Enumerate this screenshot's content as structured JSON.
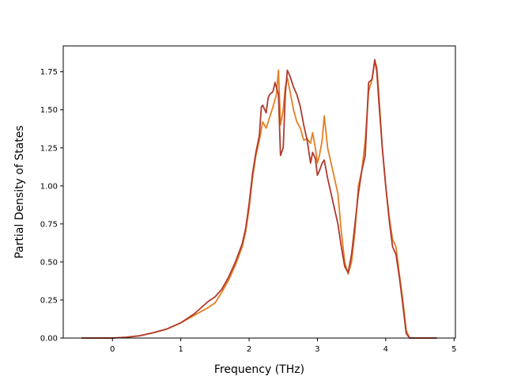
{
  "chart_data": {
    "type": "line",
    "title": "",
    "xlabel": "Frequency (THz)",
    "ylabel": "Partial Density of States",
    "xlim": [
      -0.72,
      5.02
    ],
    "ylim": [
      0.0,
      1.92
    ],
    "xticks": [
      0,
      1,
      2,
      3,
      4,
      5
    ],
    "xtick_labels": [
      "0",
      "1",
      "2",
      "3",
      "4",
      "5"
    ],
    "yticks": [
      0.0,
      0.25,
      0.5,
      0.75,
      1.0,
      1.25,
      1.5,
      1.75
    ],
    "ytick_labels": [
      "0.00",
      "0.25",
      "0.50",
      "0.75",
      "1.00",
      "1.25",
      "1.50",
      "1.75"
    ],
    "grid": false,
    "legend": "none",
    "series": [
      {
        "color": "#e67e22",
        "x": [
          -0.45,
          0.0,
          0.2,
          0.4,
          0.6,
          0.8,
          1.0,
          1.2,
          1.4,
          1.5,
          1.6,
          1.7,
          1.8,
          1.9,
          1.95,
          2.0,
          2.05,
          2.1,
          2.15,
          2.2,
          2.25,
          2.28,
          2.3,
          2.35,
          2.4,
          2.43,
          2.46,
          2.5,
          2.53,
          2.56,
          2.6,
          2.65,
          2.7,
          2.75,
          2.8,
          2.85,
          2.9,
          2.93,
          2.97,
          3.0,
          3.03,
          3.07,
          3.1,
          3.15,
          3.2,
          3.25,
          3.3,
          3.35,
          3.4,
          3.45,
          3.5,
          3.55,
          3.6,
          3.65,
          3.7,
          3.75,
          3.8,
          3.84,
          3.87,
          3.9,
          3.95,
          4.0,
          4.05,
          4.1,
          4.15,
          4.2,
          4.25,
          4.3,
          4.35,
          4.5,
          4.75
        ],
        "y": [
          0.0,
          0.0,
          0.005,
          0.015,
          0.035,
          0.06,
          0.1,
          0.15,
          0.2,
          0.23,
          0.3,
          0.38,
          0.48,
          0.6,
          0.7,
          0.85,
          1.05,
          1.2,
          1.3,
          1.42,
          1.38,
          1.42,
          1.45,
          1.52,
          1.6,
          1.76,
          1.4,
          1.5,
          1.65,
          1.71,
          1.62,
          1.5,
          1.42,
          1.38,
          1.3,
          1.31,
          1.28,
          1.35,
          1.25,
          1.15,
          1.2,
          1.3,
          1.46,
          1.25,
          1.15,
          1.05,
          0.95,
          0.7,
          0.5,
          0.42,
          0.5,
          0.7,
          1.0,
          1.1,
          1.3,
          1.62,
          1.7,
          1.82,
          1.78,
          1.6,
          1.25,
          1.0,
          0.8,
          0.65,
          0.6,
          0.42,
          0.25,
          0.05,
          0.0,
          0.0,
          0.0
        ]
      },
      {
        "color": "#b03a2e",
        "x": [
          -0.45,
          0.0,
          0.2,
          0.4,
          0.6,
          0.8,
          1.0,
          1.2,
          1.4,
          1.5,
          1.6,
          1.7,
          1.8,
          1.9,
          1.95,
          2.0,
          2.05,
          2.1,
          2.15,
          2.18,
          2.2,
          2.25,
          2.28,
          2.3,
          2.35,
          2.38,
          2.4,
          2.43,
          2.46,
          2.5,
          2.53,
          2.56,
          2.6,
          2.65,
          2.7,
          2.75,
          2.8,
          2.85,
          2.9,
          2.93,
          2.97,
          3.0,
          3.03,
          3.07,
          3.1,
          3.15,
          3.2,
          3.25,
          3.3,
          3.35,
          3.4,
          3.45,
          3.5,
          3.55,
          3.6,
          3.65,
          3.7,
          3.75,
          3.8,
          3.84,
          3.87,
          3.9,
          3.95,
          4.0,
          4.05,
          4.1,
          4.15,
          4.2,
          4.25,
          4.3,
          4.35,
          4.5,
          4.75
        ],
        "y": [
          0.0,
          0.0,
          0.005,
          0.015,
          0.035,
          0.06,
          0.1,
          0.16,
          0.24,
          0.27,
          0.32,
          0.4,
          0.5,
          0.62,
          0.72,
          0.88,
          1.08,
          1.22,
          1.33,
          1.52,
          1.53,
          1.48,
          1.58,
          1.6,
          1.62,
          1.68,
          1.65,
          1.6,
          1.2,
          1.25,
          1.6,
          1.76,
          1.72,
          1.65,
          1.6,
          1.52,
          1.4,
          1.3,
          1.15,
          1.22,
          1.18,
          1.07,
          1.1,
          1.15,
          1.17,
          1.05,
          0.95,
          0.85,
          0.75,
          0.6,
          0.47,
          0.43,
          0.55,
          0.75,
          0.95,
          1.1,
          1.2,
          1.68,
          1.7,
          1.83,
          1.75,
          1.55,
          1.25,
          1.0,
          0.78,
          0.6,
          0.55,
          0.4,
          0.22,
          0.03,
          0.0,
          0.0,
          0.0
        ]
      }
    ]
  }
}
